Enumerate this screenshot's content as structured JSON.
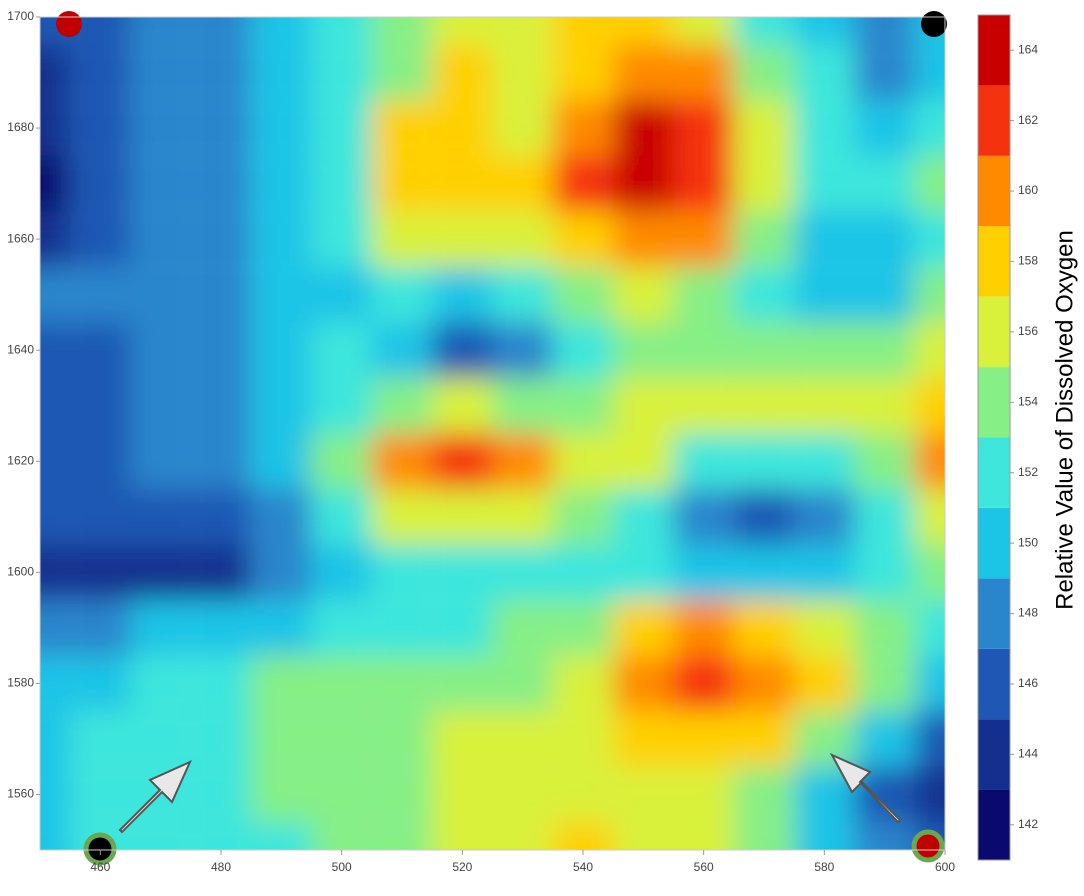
{
  "chart_data": {
    "type": "contour",
    "colorbar_label": "Relative Value of Dissolved Oxygen",
    "x": [
      450,
      460,
      470,
      480,
      490,
      500,
      510,
      520,
      530,
      540,
      550,
      560,
      570,
      580,
      590,
      600
    ],
    "y": [
      1700,
      1690,
      1680,
      1670,
      1660,
      1650,
      1640,
      1630,
      1620,
      1610,
      1600,
      1590,
      1580,
      1570,
      1560,
      1550
    ],
    "z": [
      [
        145,
        146,
        147,
        148,
        150,
        151,
        153,
        155,
        155,
        157,
        158,
        156,
        152,
        150,
        147,
        149
      ],
      [
        144,
        146,
        147,
        148,
        150,
        152,
        154,
        157,
        156,
        157,
        160,
        160,
        154,
        151,
        148,
        149
      ],
      [
        143,
        145,
        147,
        148,
        150,
        152,
        158,
        158,
        156,
        160,
        163,
        162,
        155,
        152,
        150,
        151
      ],
      [
        142,
        145,
        147,
        148,
        150,
        152,
        158,
        158,
        157,
        161,
        163,
        162,
        156,
        152,
        152,
        153
      ],
      [
        144,
        146,
        147,
        148,
        149,
        151,
        155,
        156,
        156,
        158,
        160,
        159,
        153,
        150,
        149,
        152
      ],
      [
        147,
        147,
        147,
        148,
        149,
        150,
        151,
        150,
        152,
        154,
        155,
        154,
        152,
        149,
        150,
        153
      ],
      [
        146,
        146,
        147,
        148,
        149,
        151,
        149,
        146,
        148,
        152,
        154,
        154,
        154,
        153,
        154,
        156
      ],
      [
        145,
        146,
        147,
        148,
        149,
        152,
        154,
        155,
        154,
        154,
        155,
        155,
        156,
        156,
        156,
        158
      ],
      [
        145,
        146,
        147,
        147,
        149,
        153,
        159,
        161,
        159,
        156,
        155,
        152,
        151,
        152,
        154,
        160
      ],
      [
        145,
        145,
        145,
        146,
        148,
        151,
        155,
        156,
        155,
        153,
        151,
        148,
        145,
        147,
        151,
        155
      ],
      [
        144,
        143,
        143,
        144,
        147,
        150,
        151,
        151,
        152,
        152,
        151,
        150,
        149,
        150,
        152,
        154
      ],
      [
        147,
        148,
        149,
        149,
        150,
        151,
        152,
        152,
        153,
        154,
        157,
        159,
        158,
        156,
        154,
        152
      ],
      [
        149,
        150,
        151,
        152,
        153,
        153,
        154,
        154,
        154,
        155,
        159,
        161,
        160,
        157,
        153,
        150
      ],
      [
        150,
        151,
        152,
        152,
        154,
        154,
        154,
        155,
        155,
        155,
        157,
        158,
        157,
        154,
        150,
        146
      ],
      [
        150,
        151,
        152,
        152,
        153,
        154,
        154,
        155,
        155,
        155,
        155,
        155,
        153,
        150,
        146,
        143
      ],
      [
        150,
        151,
        151,
        152,
        152,
        153,
        154,
        155,
        156,
        157,
        156,
        155,
        153,
        150,
        147,
        145
      ]
    ],
    "xlim": [
      450,
      600
    ],
    "ylim": [
      1550,
      1700
    ],
    "xticks": [
      460,
      480,
      500,
      520,
      540,
      560,
      580,
      600
    ],
    "yticks": [
      1560,
      1580,
      1600,
      1620,
      1640,
      1660,
      1680,
      1700
    ],
    "clim": [
      141,
      165
    ],
    "cticks": [
      142,
      144,
      146,
      148,
      150,
      152,
      154,
      156,
      158,
      160,
      162,
      164
    ],
    "colorscale": [
      "#0a0a6e",
      "#13308f",
      "#1f58b4",
      "#2a86cc",
      "#1cc4e6",
      "#3ee6dc",
      "#86ef86",
      "#d9f13a",
      "#ffd000",
      "#ff8a00",
      "#f5320f",
      "#c80000"
    ]
  }
}
